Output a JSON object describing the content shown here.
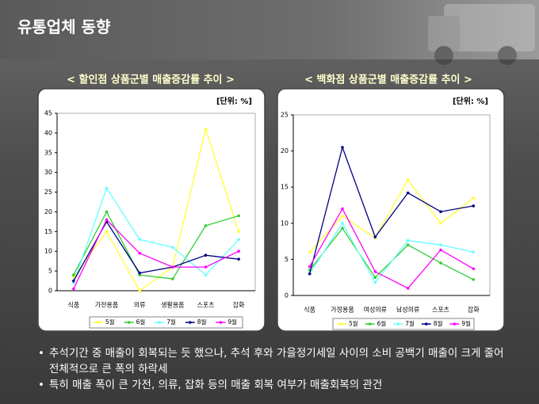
{
  "slide": {
    "title": "유통업체 동향",
    "bullets": [
      "추석기간 중 매출이 회복되는 듯 했으나, 추석 후와 가을정기세일 사이의 소비 공백기 매출이 크게 줄어 전체적으로 큰 폭의 하락세",
      "특히 매출 폭이 큰 가전, 의류, 잡화 등의 매출 회복 여부가 매출회복의 관건"
    ]
  },
  "chart_data": [
    {
      "type": "line",
      "title": "< 할인점 상품군별 매출증감률 추이 >",
      "unit_label": "[단위: %]",
      "categories": [
        "식품",
        "가전용품",
        "의류",
        "생활용품",
        "스포츠",
        "잡화"
      ],
      "series": [
        {
          "name": "5월",
          "color": "#ffff33",
          "values": [
            3.5,
            15,
            0,
            6,
            41,
            15
          ]
        },
        {
          "name": "6월",
          "color": "#33cc33",
          "values": [
            4,
            20,
            4,
            3,
            16.5,
            19
          ]
        },
        {
          "name": "7월",
          "color": "#66ffff",
          "values": [
            2,
            26,
            13,
            11,
            4,
            13
          ]
        },
        {
          "name": "8월",
          "color": "#000080",
          "values": [
            2.5,
            17.5,
            4.5,
            6,
            9,
            8
          ]
        },
        {
          "name": "9월",
          "color": "#ff00ff",
          "values": [
            0.5,
            18,
            9.5,
            6,
            6,
            10
          ]
        }
      ],
      "ylim": [
        0,
        45
      ],
      "yticks": [
        0,
        5,
        10,
        15,
        20,
        25,
        30,
        35,
        40,
        45
      ]
    },
    {
      "type": "line",
      "title": "< 백화점 상품군별 매출증감률 추이 >",
      "unit_label": "[단위: %]",
      "categories": [
        "식품",
        "가정용품",
        "여성의류",
        "남성의류",
        "스포츠",
        "잡화"
      ],
      "series": [
        {
          "name": "5월",
          "color": "#ffff33",
          "values": [
            6,
            11,
            8,
            16,
            10,
            13.5
          ]
        },
        {
          "name": "6월",
          "color": "#33cc33",
          "values": [
            3.5,
            9.3,
            2.5,
            7,
            4.5,
            2.2
          ]
        },
        {
          "name": "7월",
          "color": "#66ffff",
          "values": [
            3,
            10,
            1.8,
            7.6,
            7,
            6
          ]
        },
        {
          "name": "8월",
          "color": "#000080",
          "values": [
            3,
            20.5,
            8.1,
            14.2,
            11.6,
            12.4
          ]
        },
        {
          "name": "9월",
          "color": "#ff00ff",
          "values": [
            4,
            12,
            3.3,
            1,
            6.3,
            3.7
          ]
        }
      ],
      "ylim": [
        0,
        25
      ],
      "yticks": [
        0,
        5,
        10,
        15,
        20,
        25
      ]
    }
  ]
}
